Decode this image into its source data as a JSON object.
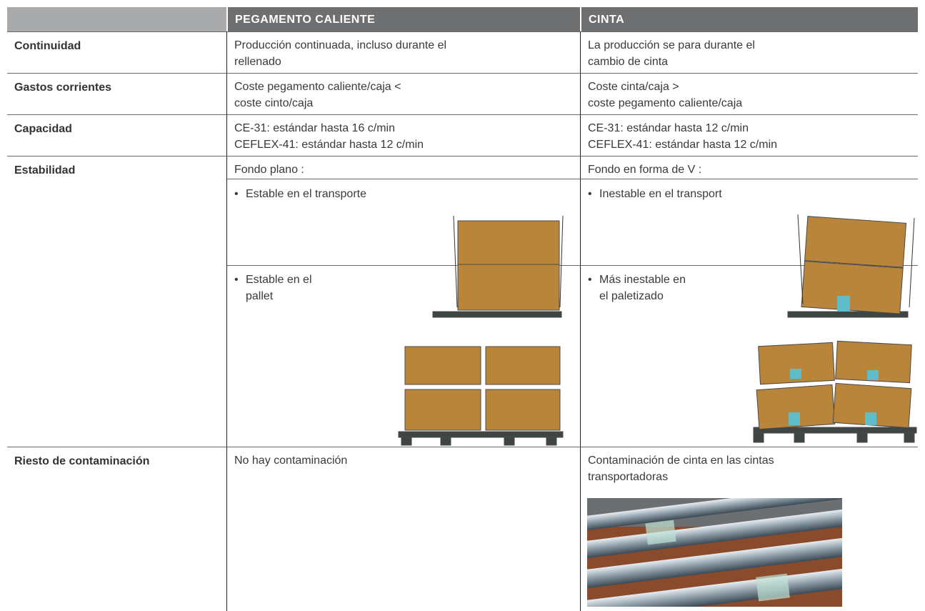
{
  "table": {
    "header": [
      "PEGAMENTO CALIENTE",
      "CINTA"
    ],
    "rows": [
      {
        "label": "Continuidad",
        "cells": [
          [
            "Producción continuada, incluso durante el",
            "rellenado"
          ],
          [
            "La producción se para durante el",
            "cambio de cinta"
          ]
        ]
      },
      {
        "label": "Gastos corrientes",
        "cells": [
          [
            "Coste pegamento caliente/caja <",
            "coste cinto/caja"
          ],
          [
            "Coste cinta/caja >",
            "coste pegamento caliente/caja"
          ]
        ]
      },
      {
        "label": "Capacidad",
        "cells": [
          [
            "CE-31: estándar hasta 16 c/min",
            "CEFLEX-41: estándar hasta 12 c/min"
          ],
          [
            "CE-31: estándar hasta 12 c/min",
            "CEFLEX-41: estándar hasta 12 c/min"
          ]
        ]
      },
      {
        "label": "Estabilidad",
        "cells": [
          [
            "Fondo plano :"
          ],
          [
            "Fondo en forma de V :"
          ]
        ],
        "transport": [
          [
            "Estable en el transporte"
          ],
          [
            "Inestable en el transport"
          ]
        ],
        "pallet": [
          [
            "Estable en el",
            "pallet"
          ],
          [
            "Más inestable en",
            "el paletizado"
          ]
        ]
      },
      {
        "label": "Riesto de contaminación",
        "cells": [
          [
            "No hay contaminación"
          ],
          [
            "Contaminación de cinta en las cintas",
            "transportadoras"
          ]
        ]
      }
    ]
  }
}
